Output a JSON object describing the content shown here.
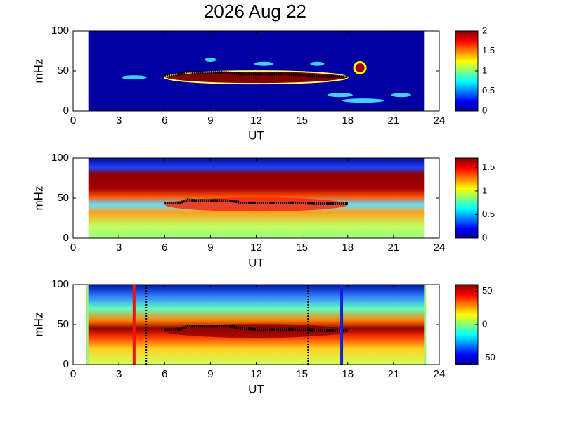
{
  "title": "2026 Aug 22",
  "chart_data": [
    {
      "type": "heatmap",
      "ylabel": "mHz",
      "xlabel": "UT",
      "xlim": [
        0,
        24
      ],
      "xticks": [
        0,
        3,
        6,
        9,
        12,
        15,
        18,
        21,
        24
      ],
      "ylim": [
        0,
        100
      ],
      "yticks": [
        0,
        50,
        100
      ],
      "data_xlim": [
        1,
        23
      ],
      "clim": [
        0,
        2
      ],
      "cticks": [
        0,
        0.5,
        1,
        1.5,
        2
      ],
      "trace": {
        "x": [
          6,
          7,
          7.5,
          8,
          9,
          10,
          10.6,
          11,
          12,
          13,
          14,
          15,
          16,
          17,
          18
        ],
        "values": [
          45,
          46,
          49,
          48,
          48,
          48,
          47,
          46,
          46,
          46,
          46,
          45,
          43,
          43,
          43
        ]
      }
    },
    {
      "type": "heatmap",
      "ylabel": "mHz",
      "xlabel": "UT",
      "xlim": [
        0,
        24
      ],
      "xticks": [
        0,
        3,
        6,
        9,
        12,
        15,
        18,
        21,
        24
      ],
      "ylim": [
        0,
        100
      ],
      "yticks": [
        0,
        50,
        100
      ],
      "data_xlim": [
        1,
        23
      ],
      "clim": [
        0,
        1.7
      ],
      "cticks": [
        0,
        0.5,
        1,
        1.5
      ],
      "trace": {
        "x": [
          6,
          7,
          7.5,
          8,
          9,
          10,
          10.6,
          11,
          12,
          13,
          14,
          15,
          16,
          17,
          18
        ],
        "values": [
          44,
          44,
          48,
          47,
          47,
          47,
          46,
          44,
          44,
          44,
          44,
          44,
          43,
          43,
          43
        ]
      }
    },
    {
      "type": "heatmap",
      "ylabel": "mHz",
      "xlabel": "UT",
      "xlim": [
        0,
        24
      ],
      "xticks": [
        0,
        3,
        6,
        9,
        12,
        15,
        18,
        21,
        24
      ],
      "ylim": [
        0,
        100
      ],
      "yticks": [
        0,
        50,
        100
      ],
      "data_xlim": [
        1,
        23
      ],
      "clim": [
        -60,
        60
      ],
      "cticks": [
        -50,
        0,
        50
      ],
      "markers": [
        {
          "x": 4,
          "color": "#ee1111",
          "style": "solid"
        },
        {
          "x": 4.8,
          "color": "#000000",
          "style": "dotted"
        },
        {
          "x": 15.4,
          "color": "#000000",
          "style": "dotted"
        },
        {
          "x": 17.6,
          "color": "#1122dd",
          "style": "solid"
        }
      ],
      "trace": {
        "x": [
          6,
          7,
          7.5,
          8,
          9,
          10,
          10.6,
          11,
          12,
          13,
          14,
          15,
          16,
          17,
          18
        ],
        "values": [
          44,
          44,
          48,
          48,
          48,
          48,
          47,
          45,
          44,
          44,
          44,
          44,
          43,
          43,
          43
        ]
      }
    }
  ]
}
